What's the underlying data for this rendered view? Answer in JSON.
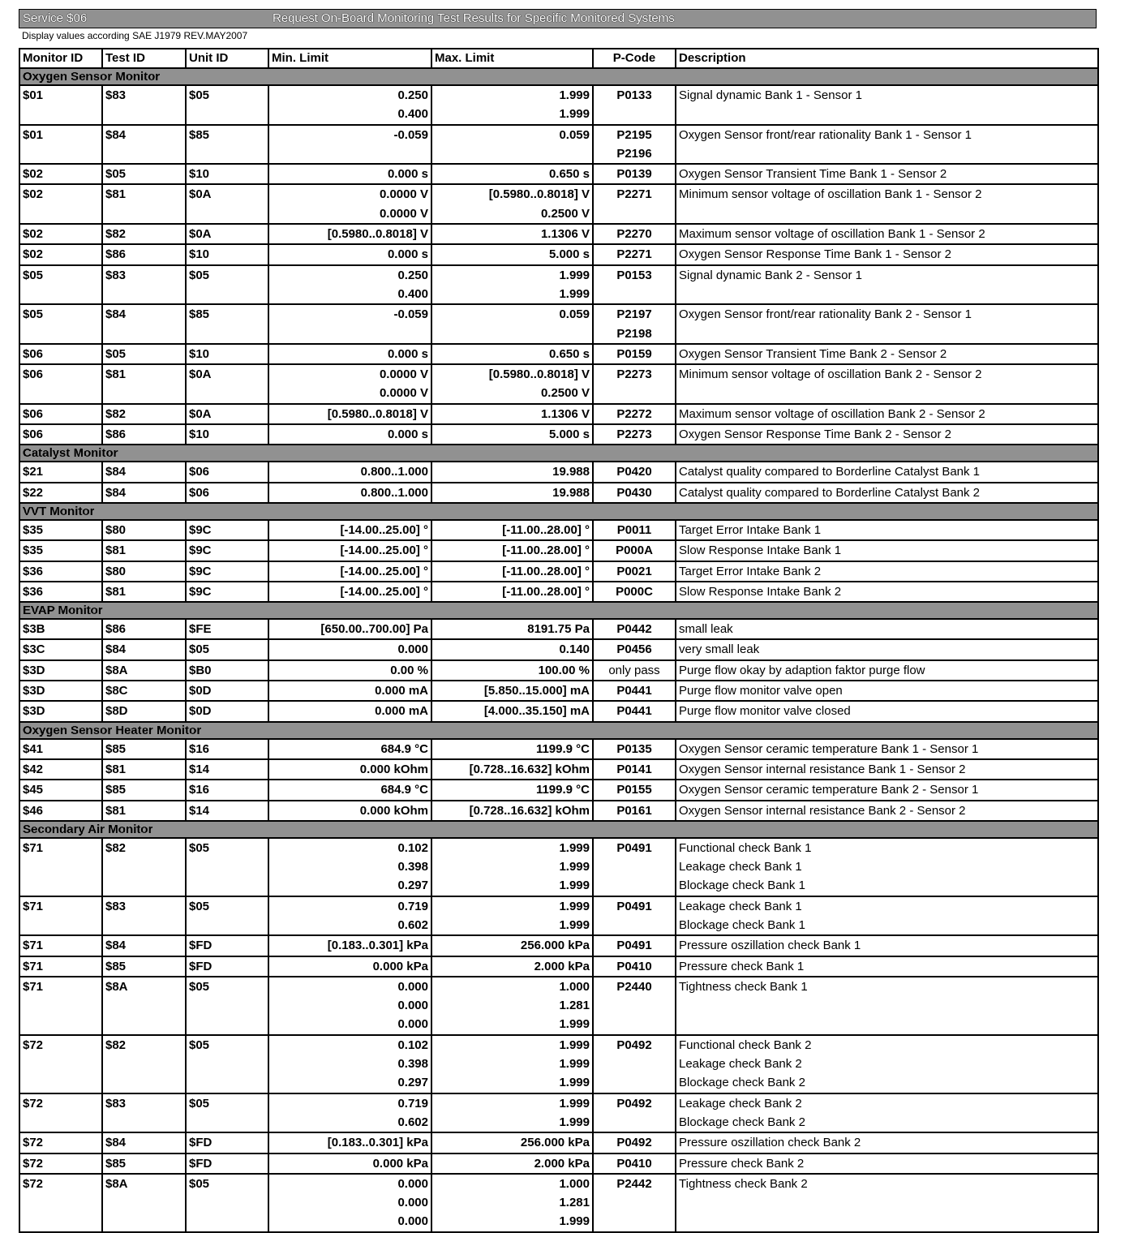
{
  "header": {
    "service": "Service $06",
    "title": "Request On-Board Monitoring Test Results for Specific Monitored Systems",
    "subtitle": "Display values according SAE J1979 REV.MAY2007"
  },
  "columns": [
    "Monitor ID",
    "Test ID",
    "Unit ID",
    "Min. Limit",
    "Max. Limit",
    "P-Code",
    "Description"
  ],
  "sections": [
    {
      "title": "Oxygen Sensor Monitor",
      "rows": [
        {
          "mon": "$01",
          "test": "$83",
          "unit": "$05",
          "min": [
            "0.250",
            "0.400"
          ],
          "max": [
            "1.999",
            "1.999"
          ],
          "pcode": [
            "P0133"
          ],
          "desc": [
            "Signal dynamic Bank 1 - Sensor 1"
          ]
        },
        {
          "mon": "$01",
          "test": "$84",
          "unit": "$85",
          "min": [
            "-0.059"
          ],
          "max": [
            "0.059"
          ],
          "pcode": [
            "P2195",
            "P2196"
          ],
          "desc": [
            "Oxygen Sensor front/rear rationality Bank 1 - Sensor 1"
          ]
        },
        {
          "mon": "$02",
          "test": "$05",
          "unit": "$10",
          "min": [
            "0.000 s"
          ],
          "max": [
            "0.650 s"
          ],
          "pcode": [
            "P0139"
          ],
          "desc": [
            "Oxygen Sensor Transient Time Bank 1 - Sensor 2"
          ]
        },
        {
          "mon": "$02",
          "test": "$81",
          "unit": "$0A",
          "min": [
            "0.0000 V",
            "0.0000 V"
          ],
          "max": [
            "[0.5980..0.8018] V",
            "0.2500 V"
          ],
          "pcode": [
            "P2271"
          ],
          "desc": [
            "Minimum sensor voltage of oscillation Bank 1 - Sensor 2"
          ]
        },
        {
          "mon": "$02",
          "test": "$82",
          "unit": "$0A",
          "min": [
            "[0.5980..0.8018] V"
          ],
          "max": [
            "1.1306 V"
          ],
          "pcode": [
            "P2270"
          ],
          "desc": [
            "Maximum sensor voltage of oscillation Bank 1 - Sensor 2"
          ]
        },
        {
          "mon": "$02",
          "test": "$86",
          "unit": "$10",
          "min": [
            "0.000 s"
          ],
          "max": [
            "5.000 s"
          ],
          "pcode": [
            "P2271"
          ],
          "desc": [
            "Oxygen Sensor Response Time Bank 1 - Sensor 2"
          ]
        },
        {
          "mon": "$05",
          "test": "$83",
          "unit": "$05",
          "min": [
            "0.250",
            "0.400"
          ],
          "max": [
            "1.999",
            "1.999"
          ],
          "pcode": [
            "P0153"
          ],
          "desc": [
            "Signal dynamic Bank 2 - Sensor 1"
          ]
        },
        {
          "mon": "$05",
          "test": "$84",
          "unit": "$85",
          "min": [
            "-0.059"
          ],
          "max": [
            "0.059"
          ],
          "pcode": [
            "P2197",
            "P2198"
          ],
          "desc": [
            "Oxygen Sensor front/rear rationality Bank 2 - Sensor 1"
          ]
        },
        {
          "mon": "$06",
          "test": "$05",
          "unit": "$10",
          "min": [
            "0.000 s"
          ],
          "max": [
            "0.650 s"
          ],
          "pcode": [
            "P0159"
          ],
          "desc": [
            "Oxygen Sensor Transient Time Bank 2 - Sensor 2"
          ]
        },
        {
          "mon": "$06",
          "test": "$81",
          "unit": "$0A",
          "min": [
            "0.0000 V",
            "0.0000 V"
          ],
          "max": [
            "[0.5980..0.8018] V",
            "0.2500 V"
          ],
          "pcode": [
            "P2273"
          ],
          "desc": [
            "Minimum sensor voltage of oscillation Bank 2 - Sensor 2"
          ]
        },
        {
          "mon": "$06",
          "test": "$82",
          "unit": "$0A",
          "min": [
            "[0.5980..0.8018] V"
          ],
          "max": [
            "1.1306 V"
          ],
          "pcode": [
            "P2272"
          ],
          "desc": [
            "Maximum sensor voltage of oscillation Bank 2 - Sensor 2"
          ]
        },
        {
          "mon": "$06",
          "test": "$86",
          "unit": "$10",
          "min": [
            "0.000 s"
          ],
          "max": [
            "5.000 s"
          ],
          "pcode": [
            "P2273"
          ],
          "desc": [
            "Oxygen Sensor Response Time Bank 2 - Sensor 2"
          ]
        }
      ]
    },
    {
      "title": "Catalyst Monitor",
      "rows": [
        {
          "mon": "$21",
          "test": "$84",
          "unit": "$06",
          "min": [
            "0.800..1.000"
          ],
          "max": [
            "19.988"
          ],
          "pcode": [
            "P0420"
          ],
          "desc": [
            "Catalyst quality compared to Borderline Catalyst Bank 1"
          ]
        },
        {
          "mon": "$22",
          "test": "$84",
          "unit": "$06",
          "min": [
            "0.800..1.000"
          ],
          "max": [
            "19.988"
          ],
          "pcode": [
            "P0430"
          ],
          "desc": [
            "Catalyst quality compared to Borderline Catalyst Bank 2"
          ]
        }
      ]
    },
    {
      "title": "VVT Monitor",
      "rows": [
        {
          "mon": "$35",
          "test": "$80",
          "unit": "$9C",
          "min": [
            "[-14.00..25.00] °"
          ],
          "max": [
            "[-11.00..28.00] °"
          ],
          "pcode": [
            "P0011"
          ],
          "desc": [
            "Target Error Intake Bank 1"
          ]
        },
        {
          "mon": "$35",
          "test": "$81",
          "unit": "$9C",
          "min": [
            "[-14.00..25.00] °"
          ],
          "max": [
            "[-11.00..28.00] °"
          ],
          "pcode": [
            "P000A"
          ],
          "desc": [
            "Slow Response Intake Bank 1"
          ]
        },
        {
          "mon": "$36",
          "test": "$80",
          "unit": "$9C",
          "min": [
            "[-14.00..25.00] °"
          ],
          "max": [
            "[-11.00..28.00] °"
          ],
          "pcode": [
            "P0021"
          ],
          "desc": [
            "Target Error Intake Bank 2"
          ]
        },
        {
          "mon": "$36",
          "test": "$81",
          "unit": "$9C",
          "min": [
            "[-14.00..25.00] °"
          ],
          "max": [
            "[-11.00..28.00] °"
          ],
          "pcode": [
            "P000C"
          ],
          "desc": [
            "Slow Response Intake Bank 2"
          ]
        }
      ]
    },
    {
      "title": "EVAP Monitor",
      "rows": [
        {
          "mon": "$3B",
          "test": "$86",
          "unit": "$FE",
          "min": [
            "[650.00..700.00] Pa"
          ],
          "max": [
            "8191.75 Pa"
          ],
          "pcode": [
            "P0442"
          ],
          "desc": [
            "small  leak"
          ]
        },
        {
          "mon": "$3C",
          "test": "$84",
          "unit": "$05",
          "min": [
            "0.000"
          ],
          "max": [
            "0.140"
          ],
          "pcode": [
            "P0456"
          ],
          "desc": [
            "very small leak"
          ]
        },
        {
          "mon": "$3D",
          "test": "$8A",
          "unit": "$B0",
          "min": [
            "0.00  %"
          ],
          "max": [
            "100.00 %"
          ],
          "pcode": [
            "only pass"
          ],
          "desc": [
            "Purge flow okay by adaption faktor purge flow"
          ]
        },
        {
          "mon": "$3D",
          "test": "$8C",
          "unit": "$0D",
          "min": [
            "0.000 mA"
          ],
          "max": [
            "[5.850..15.000] mA"
          ],
          "pcode": [
            "P0441"
          ],
          "desc": [
            "Purge flow monitor valve open"
          ]
        },
        {
          "mon": "$3D",
          "test": "$8D",
          "unit": "$0D",
          "min": [
            "0.000 mA"
          ],
          "max": [
            "[4.000..35.150] mA"
          ],
          "pcode": [
            "P0441"
          ],
          "desc": [
            "Purge flow monitor valve closed"
          ]
        }
      ]
    },
    {
      "title": "Oxygen Sensor Heater Monitor",
      "rows": [
        {
          "mon": "$41",
          "test": "$85",
          "unit": "$16",
          "min": [
            "684.9 °C"
          ],
          "max": [
            "1199.9 °C"
          ],
          "pcode": [
            "P0135"
          ],
          "desc": [
            "Oxygen Sensor ceramic temperature Bank 1 - Sensor 1"
          ]
        },
        {
          "mon": "$42",
          "test": "$81",
          "unit": "$14",
          "min": [
            "0.000 kOhm"
          ],
          "max": [
            "[0.728..16.632] kOhm"
          ],
          "pcode": [
            "P0141"
          ],
          "desc": [
            "Oxygen Sensor internal resistance Bank 1 - Sensor 2"
          ]
        },
        {
          "mon": "$45",
          "test": "$85",
          "unit": "$16",
          "min": [
            "684.9 °C"
          ],
          "max": [
            "1199.9 °C"
          ],
          "pcode": [
            "P0155"
          ],
          "desc": [
            "Oxygen Sensor ceramic temperature Bank 2 - Sensor 1"
          ]
        },
        {
          "mon": "$46",
          "test": "$81",
          "unit": "$14",
          "min": [
            "0.000 kOhm"
          ],
          "max": [
            "[0.728..16.632] kOhm"
          ],
          "pcode": [
            "P0161"
          ],
          "desc": [
            "Oxygen Sensor internal resistance Bank 2 - Sensor 2"
          ]
        }
      ]
    },
    {
      "title": "Secondary Air Monitor",
      "rows": [
        {
          "mon": "$71",
          "test": "$82",
          "unit": "$05",
          "min": [
            "0.102",
            "0.398",
            "0.297"
          ],
          "max": [
            "1.999",
            "1.999",
            "1.999"
          ],
          "pcode": [
            "P0491"
          ],
          "desc": [
            "Functional check Bank 1",
            "Leakage check Bank 1",
            "Blockage check Bank 1"
          ]
        },
        {
          "mon": "$71",
          "test": "$83",
          "unit": "$05",
          "min": [
            "0.719",
            "0.602"
          ],
          "max": [
            "1.999",
            "1.999"
          ],
          "pcode": [
            "P0491"
          ],
          "desc": [
            "Leakage check Bank 1",
            "Blockage check Bank 1"
          ]
        },
        {
          "mon": "$71",
          "test": "$84",
          "unit": "$FD",
          "min": [
            "[0.183..0.301] kPa"
          ],
          "max": [
            "256.000 kPa"
          ],
          "pcode": [
            "P0491"
          ],
          "desc": [
            "Pressure oszillation check Bank 1"
          ]
        },
        {
          "mon": "$71",
          "test": "$85",
          "unit": "$FD",
          "min": [
            "0.000 kPa"
          ],
          "max": [
            "2.000 kPa"
          ],
          "pcode": [
            "P0410"
          ],
          "desc": [
            "Pressure check Bank 1"
          ]
        },
        {
          "mon": "$71",
          "test": "$8A",
          "unit": "$05",
          "min": [
            "0.000",
            "0.000",
            "0.000"
          ],
          "max": [
            "1.000",
            "1.281",
            "1.999"
          ],
          "pcode": [
            "P2440"
          ],
          "desc": [
            "Tightness check Bank 1"
          ]
        },
        {
          "mon": "$72",
          "test": "$82",
          "unit": "$05",
          "min": [
            "0.102",
            "0.398",
            "0.297"
          ],
          "max": [
            "1.999",
            "1.999",
            "1.999"
          ],
          "pcode": [
            "P0492"
          ],
          "desc": [
            "Functional check Bank 2",
            "Leakage check Bank 2",
            "Blockage check Bank 2"
          ]
        },
        {
          "mon": "$72",
          "test": "$83",
          "unit": "$05",
          "min": [
            "0.719",
            "0.602"
          ],
          "max": [
            "1.999",
            "1.999"
          ],
          "pcode": [
            "P0492"
          ],
          "desc": [
            "Leakage check Bank 2",
            "Blockage check Bank 2"
          ]
        },
        {
          "mon": "$72",
          "test": "$84",
          "unit": "$FD",
          "min": [
            "[0.183..0.301] kPa"
          ],
          "max": [
            "256.000 kPa"
          ],
          "pcode": [
            "P0492"
          ],
          "desc": [
            "Pressure oszillation check Bank 2"
          ]
        },
        {
          "mon": "$72",
          "test": "$85",
          "unit": "$FD",
          "min": [
            "0.000 kPa"
          ],
          "max": [
            "2.000 kPa"
          ],
          "pcode": [
            "P0410"
          ],
          "desc": [
            "Pressure check Bank 2"
          ]
        },
        {
          "mon": "$72",
          "test": "$8A",
          "unit": "$05",
          "min": [
            "0.000",
            "0.000",
            "0.000"
          ],
          "max": [
            "1.000",
            "1.281",
            "1.999"
          ],
          "pcode": [
            "P2442"
          ],
          "desc": [
            "Tightness check Bank 2"
          ]
        }
      ]
    }
  ]
}
